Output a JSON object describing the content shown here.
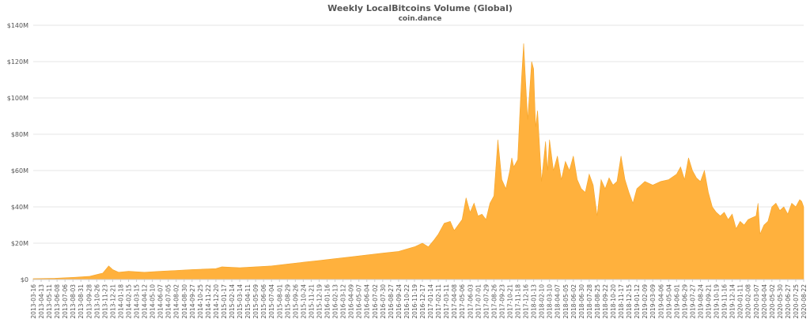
{
  "chart_data": {
    "type": "area",
    "title": "Weekly LocalBitcoins Volume (Global)",
    "subtitle": "coin.dance",
    "xlabel": "",
    "ylabel": "",
    "unit": "USD",
    "ylim": [
      0,
      140000000
    ],
    "y_ticks": [
      {
        "value": 0,
        "label": "$0"
      },
      {
        "value": 20000000,
        "label": "$20M"
      },
      {
        "value": 40000000,
        "label": "$40M"
      },
      {
        "value": 60000000,
        "label": "$60M"
      },
      {
        "value": 80000000,
        "label": "$80M"
      },
      {
        "value": 100000000,
        "label": "$100M"
      },
      {
        "value": 120000000,
        "label": "$120M"
      },
      {
        "value": 140000000,
        "label": "$140M"
      }
    ],
    "grid": true,
    "legend": "none",
    "x_range": [
      "2013-03-16",
      "2020-08-22"
    ],
    "x_tick_labels": [
      "2013-03-16",
      "2013-04-13",
      "2013-05-11",
      "2013-06-08",
      "2013-07-06",
      "2013-08-03",
      "2013-08-31",
      "2013-09-28",
      "2013-10-26",
      "2013-11-23",
      "2013-12-21",
      "2014-01-18",
      "2014-02-15",
      "2014-03-15",
      "2014-04-12",
      "2014-05-10",
      "2014-06-07",
      "2014-07-05",
      "2014-08-02",
      "2014-08-30",
      "2014-09-27",
      "2014-10-25",
      "2014-11-22",
      "2014-12-20",
      "2015-01-17",
      "2015-02-14",
      "2015-03-14",
      "2015-04-11",
      "2015-05-09",
      "2015-06-06",
      "2015-07-04",
      "2015-08-01",
      "2015-08-29",
      "2015-09-26",
      "2015-10-24",
      "2015-11-21",
      "2015-12-19",
      "2016-01-16",
      "2016-02-13",
      "2016-03-12",
      "2016-04-09",
      "2016-05-07",
      "2016-06-04",
      "2016-07-02",
      "2016-07-30",
      "2016-08-27",
      "2016-09-24",
      "2016-10-22",
      "2016-11-19",
      "2016-12-17",
      "2017-01-14",
      "2017-02-11",
      "2017-03-11",
      "2017-04-08",
      "2017-05-06",
      "2017-06-03",
      "2017-07-01",
      "2017-07-29",
      "2017-08-26",
      "2017-09-23",
      "2017-10-21",
      "2017-11-18",
      "2017-12-16",
      "2018-01-13",
      "2018-02-10",
      "2018-03-10",
      "2018-04-07",
      "2018-05-05",
      "2018-06-02",
      "2018-06-30",
      "2018-07-28",
      "2018-08-25",
      "2018-09-22",
      "2018-10-20",
      "2018-11-17",
      "2018-12-15",
      "2019-01-12",
      "2019-02-09",
      "2019-03-09",
      "2019-04-06",
      "2019-05-04",
      "2019-06-01",
      "2019-06-29",
      "2019-07-27",
      "2019-08-24",
      "2019-09-21",
      "2019-10-19",
      "2019-11-16",
      "2019-12-14",
      "2020-01-11",
      "2020-02-08",
      "2020-03-07",
      "2020-04-04",
      "2020-05-02",
      "2020-05-30",
      "2020-06-27",
      "2020-07-25",
      "2020-08-22"
    ],
    "points": [
      [
        "2013-03-16",
        0.5
      ],
      [
        "2013-06-01",
        0.7
      ],
      [
        "2013-08-10",
        1.2
      ],
      [
        "2013-10-01",
        1.8
      ],
      [
        "2013-11-16",
        3.5
      ],
      [
        "2013-12-07",
        7.5
      ],
      [
        "2013-12-21",
        5.5
      ],
      [
        "2014-01-11",
        4.0
      ],
      [
        "2014-02-15",
        4.5
      ],
      [
        "2014-04-12",
        4.0
      ],
      [
        "2014-06-07",
        4.5
      ],
      [
        "2014-08-02",
        5.0
      ],
      [
        "2014-09-27",
        5.5
      ],
      [
        "2014-12-20",
        6.0
      ],
      [
        "2015-01-10",
        7.0
      ],
      [
        "2015-03-14",
        6.5
      ],
      [
        "2015-05-09",
        7.0
      ],
      [
        "2015-07-04",
        7.5
      ],
      [
        "2015-08-29",
        8.5
      ],
      [
        "2015-10-24",
        9.5
      ],
      [
        "2015-12-19",
        10.5
      ],
      [
        "2016-02-13",
        11.5
      ],
      [
        "2016-04-09",
        12.5
      ],
      [
        "2016-06-04",
        13.5
      ],
      [
        "2016-07-30",
        14.5
      ],
      [
        "2016-09-24",
        15.5
      ],
      [
        "2016-11-19",
        18.0
      ],
      [
        "2016-12-17",
        20.0
      ],
      [
        "2017-01-07",
        18.0
      ],
      [
        "2017-01-28",
        22.0
      ],
      [
        "2017-02-11",
        25.0
      ],
      [
        "2017-03-04",
        31.0
      ],
      [
        "2017-03-25",
        32.0
      ],
      [
        "2017-04-08",
        27.0
      ],
      [
        "2017-05-06",
        33.0
      ],
      [
        "2017-05-20",
        45.0
      ],
      [
        "2017-06-03",
        37.0
      ],
      [
        "2017-06-17",
        42.0
      ],
      [
        "2017-07-01",
        35.0
      ],
      [
        "2017-07-15",
        36.0
      ],
      [
        "2017-07-29",
        33.0
      ],
      [
        "2017-08-12",
        42.0
      ],
      [
        "2017-08-26",
        46.0
      ],
      [
        "2017-09-09",
        77.0
      ],
      [
        "2017-09-23",
        55.0
      ],
      [
        "2017-10-07",
        50.0
      ],
      [
        "2017-10-21",
        60.0
      ],
      [
        "2017-10-28",
        67.0
      ],
      [
        "2017-11-04",
        62.0
      ],
      [
        "2017-11-18",
        66.0
      ],
      [
        "2017-11-25",
        90.0
      ],
      [
        "2017-12-02",
        112.0
      ],
      [
        "2017-12-09",
        130.0
      ],
      [
        "2017-12-16",
        108.0
      ],
      [
        "2017-12-23",
        88.0
      ],
      [
        "2018-01-06",
        120.0
      ],
      [
        "2018-01-13",
        116.0
      ],
      [
        "2018-01-20",
        84.0
      ],
      [
        "2018-01-27",
        93.0
      ],
      [
        "2018-02-10",
        54.0
      ],
      [
        "2018-02-24",
        76.0
      ],
      [
        "2018-03-03",
        60.0
      ],
      [
        "2018-03-10",
        77.0
      ],
      [
        "2018-03-24",
        60.0
      ],
      [
        "2018-04-07",
        68.0
      ],
      [
        "2018-04-21",
        55.0
      ],
      [
        "2018-05-05",
        65.0
      ],
      [
        "2018-05-19",
        60.0
      ],
      [
        "2018-06-02",
        68.0
      ],
      [
        "2018-06-16",
        55.0
      ],
      [
        "2018-06-30",
        50.0
      ],
      [
        "2018-07-14",
        48.0
      ],
      [
        "2018-07-28",
        58.0
      ],
      [
        "2018-08-11",
        52.0
      ],
      [
        "2018-08-25",
        35.0
      ],
      [
        "2018-09-08",
        55.0
      ],
      [
        "2018-09-22",
        50.0
      ],
      [
        "2018-10-06",
        56.0
      ],
      [
        "2018-10-20",
        52.0
      ],
      [
        "2018-11-03",
        54.0
      ],
      [
        "2018-11-17",
        68.0
      ],
      [
        "2018-12-01",
        55.0
      ],
      [
        "2018-12-15",
        48.0
      ],
      [
        "2018-12-29",
        42.0
      ],
      [
        "2019-01-12",
        50.0
      ],
      [
        "2019-02-09",
        54.0
      ],
      [
        "2019-03-09",
        52.0
      ],
      [
        "2019-04-06",
        54.0
      ],
      [
        "2019-05-04",
        55.0
      ],
      [
        "2019-06-01",
        58.0
      ],
      [
        "2019-06-15",
        62.0
      ],
      [
        "2019-06-29",
        55.0
      ],
      [
        "2019-07-13",
        67.0
      ],
      [
        "2019-07-27",
        60.0
      ],
      [
        "2019-08-10",
        56.0
      ],
      [
        "2019-08-24",
        54.0
      ],
      [
        "2019-09-07",
        60.0
      ],
      [
        "2019-09-21",
        48.0
      ],
      [
        "2019-10-05",
        40.0
      ],
      [
        "2019-10-19",
        37.0
      ],
      [
        "2019-11-02",
        35.0
      ],
      [
        "2019-11-16",
        37.0
      ],
      [
        "2019-11-30",
        33.0
      ],
      [
        "2019-12-14",
        36.0
      ],
      [
        "2019-12-28",
        28.0
      ],
      [
        "2020-01-11",
        32.0
      ],
      [
        "2020-01-25",
        30.0
      ],
      [
        "2020-02-08",
        33.0
      ],
      [
        "2020-02-22",
        34.0
      ],
      [
        "2020-03-07",
        35.0
      ],
      [
        "2020-03-14",
        42.0
      ],
      [
        "2020-03-21",
        25.0
      ],
      [
        "2020-04-04",
        30.0
      ],
      [
        "2020-04-18",
        32.0
      ],
      [
        "2020-05-02",
        40.0
      ],
      [
        "2020-05-16",
        42.0
      ],
      [
        "2020-05-30",
        38.0
      ],
      [
        "2020-06-13",
        40.0
      ],
      [
        "2020-06-27",
        36.0
      ],
      [
        "2020-07-11",
        42.0
      ],
      [
        "2020-07-25",
        40.0
      ],
      [
        "2020-08-08",
        44.0
      ],
      [
        "2020-08-15",
        43.0
      ],
      [
        "2020-08-22",
        40.0
      ]
    ],
    "points_unit": "millions USD",
    "colors": {
      "area": "#ffb13d",
      "line": "#f5a52a"
    }
  }
}
